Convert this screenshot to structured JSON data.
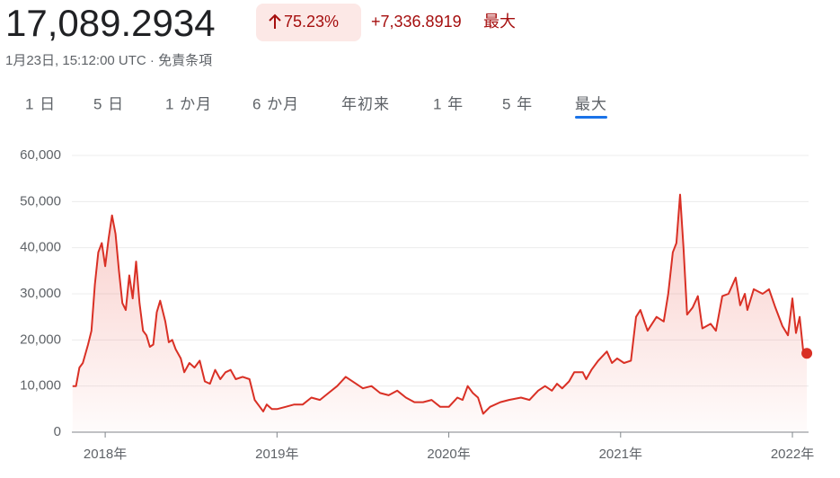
{
  "header": {
    "price": "17,089.2934",
    "change_percent": "75.23%",
    "change_abs": "+7,336.8919",
    "range_label": "最大",
    "timestamp": "1月23日, 15:12:00 UTC · 免責条項"
  },
  "tabs": [
    "1 日",
    "5 日",
    "1 か月",
    "6 か月",
    "年初来",
    "1 年",
    "5 年",
    "最大"
  ],
  "active_tab": 7,
  "chart_data": {
    "type": "area",
    "color": "#d93025",
    "x": [
      2017.81,
      2017.83,
      2017.85,
      2017.87,
      2017.9,
      2017.92,
      2017.94,
      2017.96,
      2017.98,
      2018.0,
      2018.02,
      2018.04,
      2018.06,
      2018.08,
      2018.1,
      2018.12,
      2018.14,
      2018.16,
      2018.18,
      2018.2,
      2018.22,
      2018.24,
      2018.26,
      2018.28,
      2018.3,
      2018.32,
      2018.35,
      2018.37,
      2018.39,
      2018.41,
      2018.44,
      2018.46,
      2018.49,
      2018.52,
      2018.55,
      2018.58,
      2018.61,
      2018.64,
      2018.67,
      2018.7,
      2018.73,
      2018.76,
      2018.8,
      2018.84,
      2018.87,
      2018.9,
      2018.92,
      2018.94,
      2018.97,
      2019.0,
      2019.05,
      2019.1,
      2019.15,
      2019.2,
      2019.25,
      2019.3,
      2019.35,
      2019.4,
      2019.46,
      2019.5,
      2019.55,
      2019.6,
      2019.65,
      2019.7,
      2019.75,
      2019.8,
      2019.85,
      2019.9,
      2019.95,
      2020.0,
      2020.05,
      2020.08,
      2020.11,
      2020.14,
      2020.17,
      2020.2,
      2020.24,
      2020.3,
      2020.35,
      2020.42,
      2020.47,
      2020.52,
      2020.56,
      2020.6,
      2020.63,
      2020.66,
      2020.7,
      2020.73,
      2020.78,
      2020.8,
      2020.83,
      2020.87,
      2020.92,
      2020.95,
      2020.98,
      2021.02,
      2021.06,
      2021.09,
      2021.115,
      2021.157,
      2021.209,
      2021.251,
      2021.277,
      2021.304,
      2021.325,
      2021.346,
      2021.366,
      2021.387,
      2021.419,
      2021.45,
      2021.476,
      2021.524,
      2021.555,
      2021.592,
      2021.628,
      2021.67,
      2021.696,
      2021.723,
      2021.738,
      2021.775,
      2021.827,
      2021.864,
      2021.901,
      2021.942,
      2021.974,
      2022.0,
      2022.021,
      2022.042,
      2022.063,
      2022.084
    ],
    "values": [
      10000,
      10000,
      14000,
      15000,
      19000,
      22000,
      32000,
      39000,
      41000,
      36000,
      42000,
      47000,
      43000,
      35000,
      28000,
      26500,
      34000,
      29000,
      37000,
      28000,
      22000,
      21000,
      18500,
      19000,
      26000,
      28500,
      24000,
      19500,
      20000,
      18000,
      16000,
      13000,
      15000,
      14000,
      15500,
      11000,
      10500,
      13500,
      11500,
      13000,
      13500,
      11500,
      12000,
      11500,
      7000,
      5500,
      4500,
      6000,
      5000,
      5000,
      5500,
      6000,
      6000,
      7500,
      7000,
      8500,
      10000,
      12000,
      10500,
      9500,
      10000,
      8500,
      8000,
      9000,
      7500,
      6500,
      6500,
      7000,
      5500,
      5500,
      7500,
      7000,
      10000,
      8500,
      7500,
      4000,
      5500,
      6500,
      7000,
      7500,
      7000,
      9000,
      10000,
      9000,
      10500,
      9500,
      11000,
      13000,
      13000,
      11500,
      13500,
      15500,
      17500,
      15000,
      16000,
      15000,
      15500,
      25000,
      26500,
      22000,
      25000,
      24000,
      30000,
      39000,
      41000,
      51500,
      40000,
      25500,
      27000,
      29500,
      22500,
      23500,
      22000,
      29500,
      30000,
      33500,
      27500,
      30000,
      26500,
      31000,
      30000,
      31000,
      27000,
      23000,
      21000,
      29000,
      21500,
      25000,
      17500,
      17089.2934
    ],
    "xlim": [
      2017.806,
      2022.094
    ],
    "xticks": [
      {
        "value": 2018,
        "label": "2018年"
      },
      {
        "value": 2019,
        "label": "2019年"
      },
      {
        "value": 2020,
        "label": "2020年"
      },
      {
        "value": 2021,
        "label": "2021年"
      },
      {
        "value": 2022,
        "label": "2022年"
      }
    ],
    "ylim": [
      0,
      60000
    ],
    "yticks": [
      0,
      {
        "value": 10000,
        "label": "10,000"
      },
      {
        "value": 20000,
        "label": "20,000"
      },
      {
        "value": 30000,
        "label": "30,000"
      },
      {
        "value": 40000,
        "label": "40,000"
      },
      {
        "value": 50000,
        "label": "50,000"
      },
      {
        "value": 60000,
        "label": "60,000"
      }
    ],
    "grid": true
  }
}
